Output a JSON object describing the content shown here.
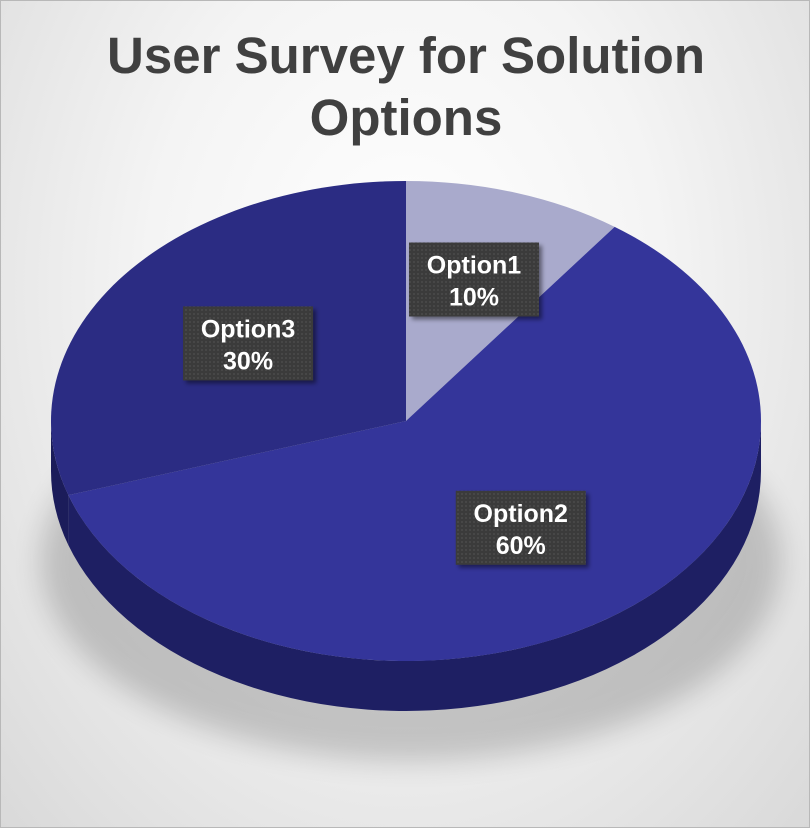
{
  "chart_data": {
    "type": "pie",
    "title_lines": [
      "User Survey for Solution",
      "Options"
    ],
    "categories": [
      "Option1",
      "Option2",
      "Option3"
    ],
    "values": [
      10,
      60,
      30
    ],
    "labels": [
      "10%",
      "60%",
      "30%"
    ],
    "colors": [
      "#a9aacc",
      "#34359a",
      "#2b2c83"
    ],
    "side_colors": [
      "#6f7099",
      "#1e1f63",
      "#1b1c5a"
    ],
    "legend": "none",
    "start_angle_deg": 0,
    "direction": "clockwise"
  }
}
